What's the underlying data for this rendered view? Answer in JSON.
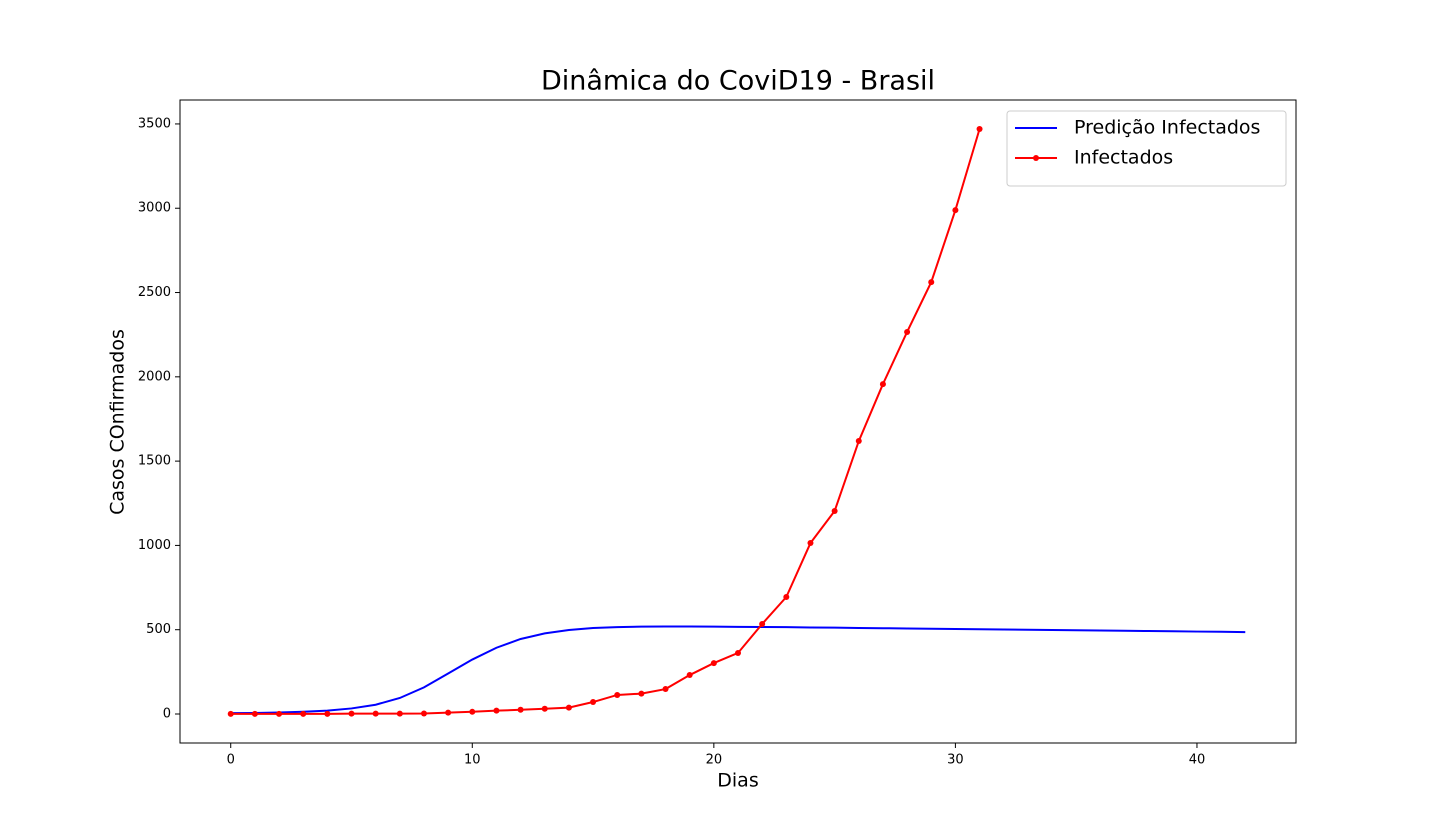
{
  "chart_data": {
    "type": "line",
    "title": "Dinâmica do CoviD19 - Brasil",
    "x_label": "Dias",
    "y_label": "Casos COnfirmados",
    "xlim": [
      -2.1,
      44.1
    ],
    "ylim": [
      -172,
      3642
    ],
    "xticks": [
      0,
      10,
      20,
      30,
      40
    ],
    "yticks": [
      0,
      500,
      1000,
      1500,
      2000,
      2500,
      3000,
      3500
    ],
    "legend": "upper right",
    "grid": false,
    "series": [
      {
        "name": "Predição Infectados",
        "color": "#0000ff",
        "marker": false,
        "x": [
          0,
          1,
          2,
          3,
          4,
          5,
          6,
          7,
          8,
          9,
          10,
          11,
          12,
          13,
          14,
          15,
          16,
          17,
          18,
          19,
          20,
          21,
          22,
          23,
          24,
          25,
          26,
          27,
          28,
          29,
          30,
          31,
          32,
          33,
          34,
          35,
          36,
          37,
          38,
          39,
          40,
          41,
          42
        ],
        "values": [
          5,
          6,
          9,
          13,
          20,
          33,
          55,
          95,
          158,
          240,
          323,
          393,
          445,
          478,
          498,
          510,
          515,
          518,
          519,
          519,
          518,
          517,
          516,
          515,
          513,
          512,
          510,
          509,
          507,
          506,
          504,
          503,
          501,
          500,
          498,
          497,
          495,
          494,
          492,
          491,
          489,
          488,
          486
        ]
      },
      {
        "name": "Infectados",
        "color": "#ff0000",
        "marker": true,
        "x": [
          0,
          1,
          2,
          3,
          4,
          5,
          6,
          7,
          8,
          9,
          10,
          11,
          12,
          13,
          14,
          15,
          16,
          17,
          18,
          19,
          20,
          21,
          22,
          23,
          24,
          25,
          26,
          27,
          28,
          29,
          30,
          31
        ],
        "values": [
          1,
          1,
          1,
          1,
          1,
          2,
          2,
          2,
          3,
          8,
          13,
          20,
          25,
          31,
          38,
          71,
          113,
          121,
          148,
          231,
          302,
          362,
          534,
          694,
          1014,
          1204,
          1619,
          1957,
          2266,
          2562,
          2989,
          3470
        ]
      }
    ]
  }
}
